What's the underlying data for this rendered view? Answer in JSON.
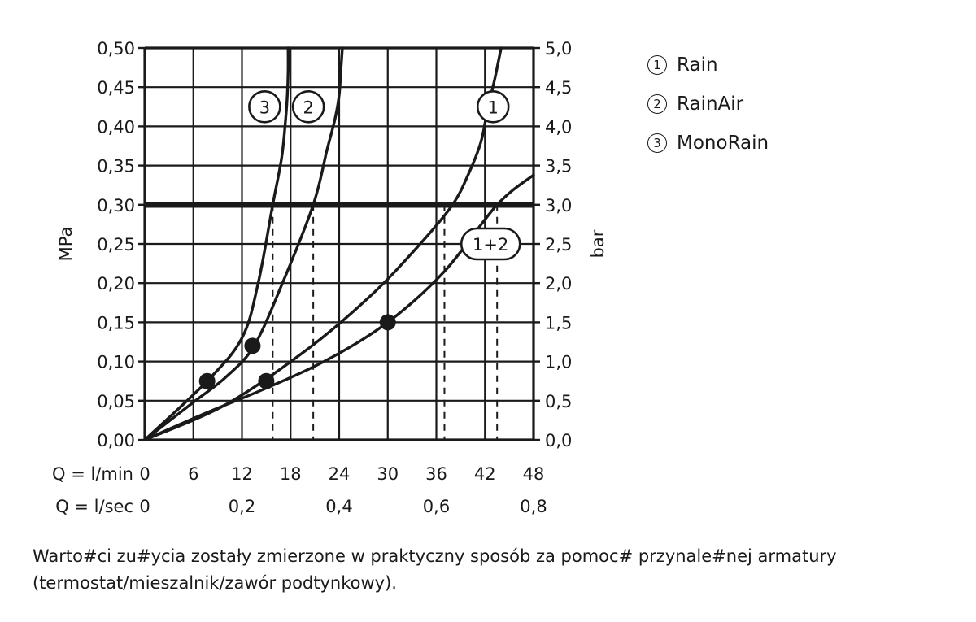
{
  "chart_data": {
    "type": "line",
    "xlabel": "Q = l/min",
    "xlabel2": "Q = l/sec",
    "x_ticks": [
      "0",
      "6",
      "12",
      "18",
      "24",
      "30",
      "36",
      "42",
      "48"
    ],
    "x2_ticks": [
      "0",
      "0,2",
      "0,4",
      "0,6",
      "0,8"
    ],
    "ylabel": "MPa",
    "ylabel_right": "bar",
    "y_ticks": [
      "0,00",
      "0,05",
      "0,10",
      "0,15",
      "0,20",
      "0,25",
      "0,30",
      "0,35",
      "0,40",
      "0,45",
      "0,50"
    ],
    "y_ticks_right": [
      "0,0",
      "0,5",
      "1,0",
      "1,5",
      "2,0",
      "2,5",
      "3,0",
      "3,5",
      "4,0",
      "4,5",
      "5,0"
    ],
    "xlim": [
      0,
      48
    ],
    "ylim": [
      0,
      0.5
    ],
    "grid": true,
    "reference_line": {
      "y": 0.3
    },
    "drop_lines_x": [
      15.8,
      20.8,
      37.0,
      43.5
    ],
    "series": [
      {
        "name": "1",
        "x": [
          0,
          10,
          20,
          28,
          34,
          38,
          40,
          41.5,
          42.3,
          43.2,
          43.6,
          44
        ],
        "y": [
          0,
          0.045,
          0.115,
          0.185,
          0.25,
          0.3,
          0.34,
          0.38,
          0.42,
          0.46,
          0.48,
          0.5
        ],
        "markers": [
          {
            "x": 30,
            "y": 0.15
          }
        ]
      },
      {
        "name": "2",
        "x": [
          0,
          6,
          10,
          13.5,
          17,
          20.8,
          22.5,
          23.5,
          24.0,
          24.2,
          24.4
        ],
        "y": [
          0,
          0.048,
          0.08,
          0.12,
          0.2,
          0.3,
          0.37,
          0.41,
          0.44,
          0.47,
          0.5
        ],
        "markers": [
          {
            "x": 13.3,
            "y": 0.12
          }
        ]
      },
      {
        "name": "3",
        "x": [
          0,
          7.7,
          12,
          14,
          15.8,
          16.9,
          17.4,
          17.6,
          17.7,
          17.7
        ],
        "y": [
          0,
          0.075,
          0.13,
          0.2,
          0.3,
          0.36,
          0.41,
          0.44,
          0.47,
          0.5
        ],
        "markers": [
          {
            "x": 7.7,
            "y": 0.075
          }
        ]
      },
      {
        "name": "1+2",
        "x": [
          0,
          7.5,
          15,
          22.5,
          30,
          37,
          43.5,
          48
        ],
        "y": [
          0,
          0.034,
          0.066,
          0.102,
          0.15,
          0.215,
          0.3,
          0.338
        ],
        "markers": [
          {
            "x": 15.0,
            "y": 0.075
          }
        ]
      }
    ],
    "legend": [
      {
        "num": "1",
        "label": "Rain"
      },
      {
        "num": "2",
        "label": "RainAir"
      },
      {
        "num": "3",
        "label": "MonoRain"
      }
    ]
  },
  "footnote": "Warto#ci zu#ycia zostały zmierzone w praktyczny sposób za pomoc# przynale#nej armatury (termostat/mieszalnik/zawór podtynkowy)."
}
